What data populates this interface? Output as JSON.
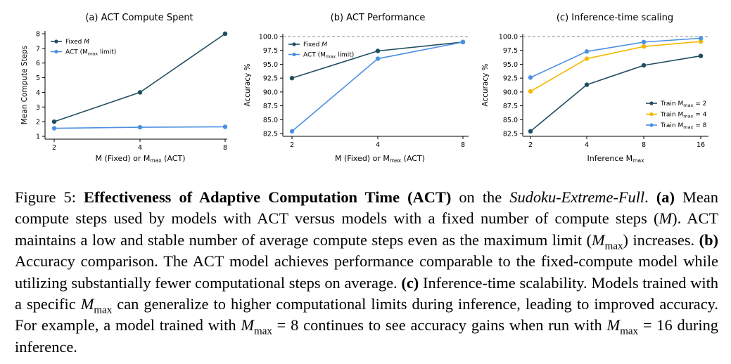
{
  "chart_data": [
    {
      "type": "line",
      "title": "(a) ACT Compute Spent",
      "xlabel_parts": {
        "pre": "M (Fixed) or M",
        "sub": "max",
        "post": " (ACT)"
      },
      "ylabel": "Mean Compute Steps",
      "x": [
        2,
        4,
        8
      ],
      "x_ticks": [
        "2",
        "4",
        "8"
      ],
      "y_ticks": [
        "1",
        "2",
        "3",
        "4",
        "5",
        "6",
        "7",
        "8"
      ],
      "ylim": [
        1,
        8
      ],
      "legend_position": "top-left",
      "series": [
        {
          "name": "Fixed M",
          "legend_italic": "M",
          "color": "#1f4e5f",
          "values": [
            2.0,
            4.0,
            8.0
          ]
        },
        {
          "name": "ACT (Mmax limit)",
          "legend_pre": "ACT (M",
          "legend_sub": "max",
          "legend_post": " limit)",
          "color": "#4a90e2",
          "values": [
            1.55,
            1.62,
            1.65
          ]
        }
      ]
    },
    {
      "type": "line",
      "title": "(b) ACT Performance",
      "xlabel_parts": {
        "pre": "M (Fixed) or M",
        "sub": "max",
        "post": " (ACT)"
      },
      "ylabel": "Accuracy %",
      "x": [
        2,
        4,
        8
      ],
      "x_ticks": [
        "2",
        "4",
        "8"
      ],
      "y_ticks": [
        "82.5",
        "85.0",
        "87.5",
        "90.0",
        "92.5",
        "95.0",
        "97.5",
        "100.0"
      ],
      "ylim": [
        82.5,
        100.0
      ],
      "reference_line": 100.0,
      "legend_position": "top-left",
      "series": [
        {
          "name": "Fixed M",
          "legend_italic": "M",
          "color": "#1f4e5f",
          "values": [
            92.5,
            97.4,
            99.0
          ]
        },
        {
          "name": "ACT (Mmax limit)",
          "legend_pre": "ACT (M",
          "legend_sub": "max",
          "legend_post": " limit)",
          "color": "#4a90e2",
          "values": [
            82.9,
            96.0,
            99.0
          ]
        }
      ]
    },
    {
      "type": "line",
      "title": "(c) Inference-time scaling",
      "xlabel_parts": {
        "pre": "Inference M",
        "sub": "max",
        "post": ""
      },
      "ylabel": "Accuracy %",
      "x": [
        2,
        4,
        8,
        16
      ],
      "x_ticks": [
        "2",
        "4",
        "8",
        "16"
      ],
      "y_ticks": [
        "82.5",
        "85.0",
        "87.5",
        "90.0",
        "92.5",
        "95.0",
        "97.5",
        "100.0"
      ],
      "ylim": [
        82.5,
        100.0
      ],
      "reference_line": 100.0,
      "legend_position": "lower-right",
      "series": [
        {
          "name": "Train Mmax = 2",
          "legend_pre": "Train M",
          "legend_sub": "max",
          "legend_post": " = 2",
          "color": "#1f4e5f",
          "values": [
            82.9,
            91.3,
            94.8,
            96.5
          ]
        },
        {
          "name": "Train Mmax = 4",
          "legend_pre": "Train M",
          "legend_sub": "max",
          "legend_post": " = 4",
          "color": "#f5b800",
          "values": [
            90.1,
            96.0,
            98.2,
            99.1
          ]
        },
        {
          "name": "Train Mmax = 8",
          "legend_pre": "Train M",
          "legend_sub": "max",
          "legend_post": " = 8",
          "color": "#4a90e2",
          "values": [
            92.6,
            97.3,
            99.0,
            99.7
          ]
        }
      ]
    }
  ],
  "caption": {
    "s01": "Figure 5: ",
    "s02": "Effectiveness of Adaptive Computation Time (ACT)",
    "s03": " on the ",
    "s04": "Sudoku-Extreme-Full",
    "s05": ". ",
    "s06": "(a)",
    "s07": " Mean compute steps used by models with ACT versus models with a fixed number of compute steps (",
    "s08": "M",
    "s09": "). ACT maintains a low and stable number of average compute steps even as the maximum limit (",
    "s10": "M",
    "s11": "max",
    "s12": ") increases. ",
    "s13": "(b)",
    "s14": " Accuracy comparison. The ACT model achieves performance comparable to the fixed-compute model while utilizing substantially fewer computational steps on average. ",
    "s15": "(c)",
    "s16": " Inference-time scalability. Models trained with a specific ",
    "s17": "M",
    "s18": "max",
    "s19": " can generalize to higher computational limits during inference, leading to improved accuracy. For example, a model trained with ",
    "s20": "M",
    "s21": "max",
    "s22": " = 8 continues to see accuracy gains when run with ",
    "s23": "M",
    "s24": "max",
    "s25": " = 16 during inference."
  }
}
